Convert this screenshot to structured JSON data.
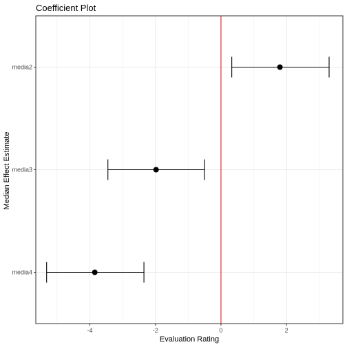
{
  "chart_data": {
    "type": "scatter",
    "title": "Coefficient Plot",
    "xlabel": "Evaluation Rating",
    "ylabel": "Median Effect Estimate",
    "xlim": [
      -5.65,
      3.72
    ],
    "x_ticks": [
      -4,
      -2,
      0,
      2
    ],
    "x_tick_labels": [
      "-4",
      "-2",
      "0",
      "2"
    ],
    "categories": [
      "media2",
      "media3",
      "media4"
    ],
    "points": [
      {
        "category": "media2",
        "estimate": 1.8,
        "lower": 0.33,
        "upper": 3.3
      },
      {
        "category": "media3",
        "estimate": -1.98,
        "lower": -3.45,
        "upper": -0.5
      },
      {
        "category": "media4",
        "estimate": -3.85,
        "lower": -5.32,
        "upper": -2.35
      }
    ],
    "reference_line": {
      "x": 0,
      "color": "#e41a1c"
    },
    "grid": true,
    "colors": {
      "point": "#000000",
      "errorbar": "#000000",
      "grid": "#ebebeb",
      "panel_border": "#333333"
    }
  }
}
